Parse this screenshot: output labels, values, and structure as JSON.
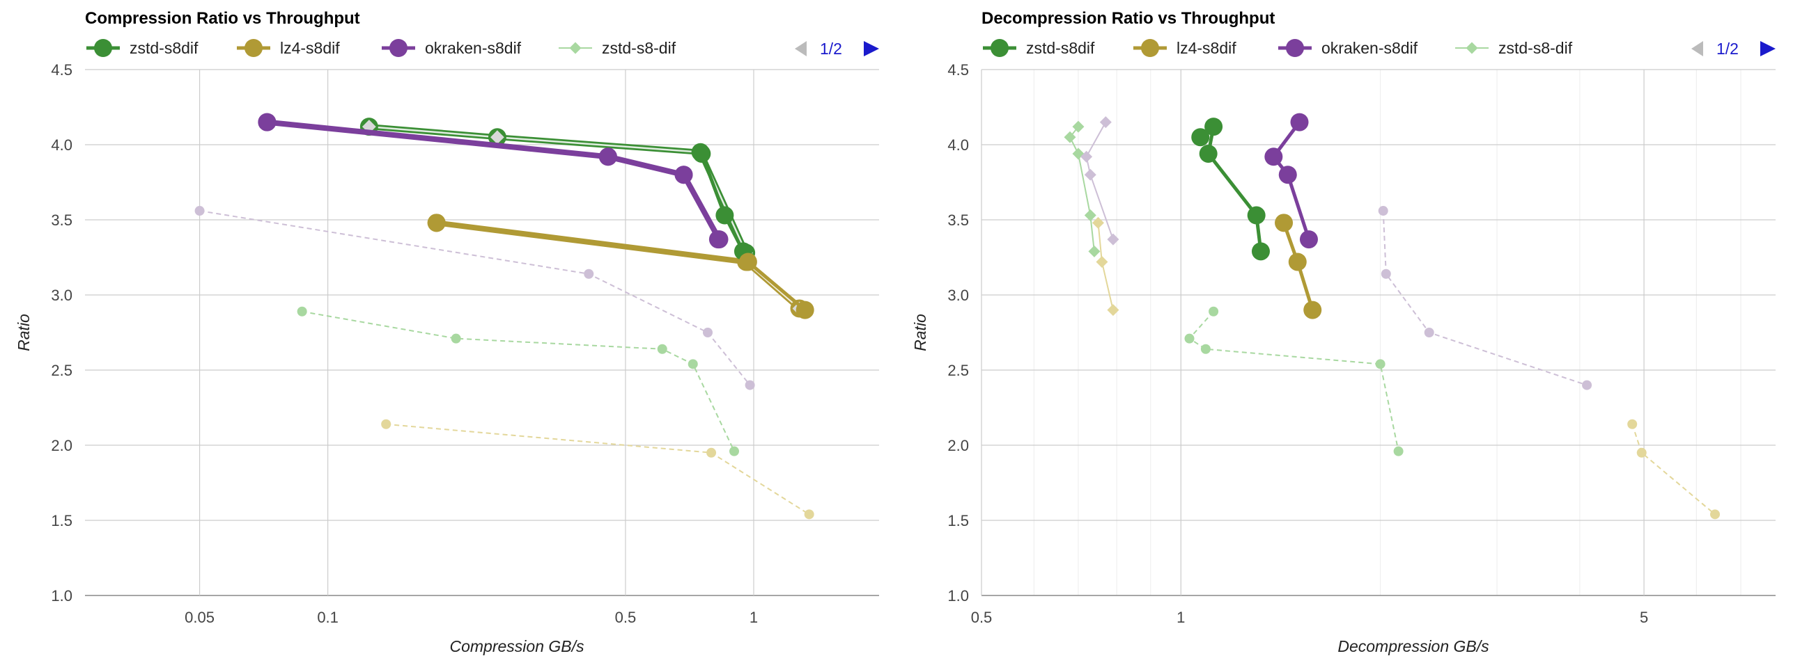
{
  "colors": {
    "zstd_main": "#3b8f35",
    "lz4_main": "#b09a35",
    "okraken_main": "#7b3f9c",
    "zstd_s8_dif": "#a8d8a0",
    "zstd_faded": "#a8d8a0",
    "lz4_faded": "#e3d79a",
    "okraken_faded": "#cdbfd6",
    "grid": "#cccccc",
    "pager_active": "#1a1acc",
    "pager_inactive": "#bbbbbb"
  },
  "chart_data": [
    {
      "type": "scatter",
      "title": "Compression Ratio vs Throughput",
      "xlabel": "Compression GB/s",
      "ylabel": "Ratio",
      "xscale": "log",
      "xlim": [
        0.0269,
        1.97
      ],
      "ylim": [
        1.0,
        4.5
      ],
      "xticks": [
        {
          "v": 0.05,
          "label": "0.05"
        },
        {
          "v": 0.1,
          "label": "0.1"
        },
        {
          "v": 0.5,
          "label": "0.5"
        },
        {
          "v": 1,
          "label": "1"
        }
      ],
      "yticks": [
        "1.0",
        "1.5",
        "2.0",
        "2.5",
        "3.0",
        "3.5",
        "4.0",
        "4.5"
      ],
      "minor_grid": false,
      "legend": {
        "position": "top",
        "entries": [
          "zstd-s8dif",
          "lz4-s8dif",
          "okraken-s8dif",
          "zstd-s8-dif"
        ],
        "pager": "1/2"
      },
      "series": [
        {
          "name": "zstd-s8dif",
          "role": "main-circle",
          "color": "zstd_main",
          "points": [
            [
              0.755,
              3.94
            ],
            [
              0.855,
              3.53
            ],
            [
              0.945,
              3.29
            ]
          ]
        },
        {
          "name": "zstd-s8dif",
          "role": "main-diamond-line",
          "color": "zstd_main",
          "points": [
            [
              0.125,
              4.12
            ],
            [
              0.25,
              4.05
            ],
            [
              0.75,
              3.95
            ],
            [
              0.96,
              3.28
            ]
          ]
        },
        {
          "name": "lz4-s8dif",
          "role": "main-circle",
          "color": "lz4_main",
          "points": [
            [
              0.18,
              3.48
            ],
            [
              0.97,
              3.22
            ],
            [
              1.32,
              2.9
            ]
          ]
        },
        {
          "name": "lz4-s8dif",
          "role": "main-diamond-line",
          "color": "lz4_main",
          "points": [
            [
              0.18,
              3.48
            ],
            [
              0.96,
              3.22
            ],
            [
              1.28,
              2.91
            ]
          ]
        },
        {
          "name": "okraken-s8dif",
          "role": "main-circle",
          "color": "okraken_main",
          "points": [
            [
              0.072,
              4.15
            ],
            [
              0.455,
              3.92
            ],
            [
              0.685,
              3.8
            ],
            [
              0.825,
              3.37
            ]
          ]
        },
        {
          "name": "okraken-s8dif",
          "role": "main-diamond-line",
          "color": "okraken_main",
          "points": [
            [
              0.072,
              4.15
            ],
            [
              0.455,
              3.92
            ],
            [
              0.685,
              3.8
            ],
            [
              0.83,
              3.37
            ]
          ]
        },
        {
          "name": "zstd-s8-dif",
          "role": "faded-dashed",
          "color": "zstd_faded",
          "points": [
            [
              0.087,
              2.89
            ],
            [
              0.2,
              2.71
            ],
            [
              0.61,
              2.64
            ],
            [
              0.72,
              2.54
            ],
            [
              0.9,
              1.96
            ]
          ]
        },
        {
          "name": "",
          "role": "faded-dashed",
          "color": "lz4_faded",
          "points": [
            [
              0.137,
              2.14
            ],
            [
              0.795,
              1.95
            ],
            [
              1.35,
              1.54
            ]
          ]
        },
        {
          "name": "",
          "role": "faded-dashed",
          "color": "okraken_faded",
          "points": [
            [
              0.05,
              3.56
            ],
            [
              0.41,
              3.14
            ],
            [
              0.78,
              2.75
            ],
            [
              0.98,
              2.4
            ]
          ]
        }
      ]
    },
    {
      "type": "scatter",
      "title": "Decompression Ratio vs Throughput",
      "xlabel": "Decompression GB/s",
      "ylabel": "Ratio",
      "xscale": "log",
      "xlim": [
        0.5,
        7.9
      ],
      "ylim": [
        1.0,
        4.5
      ],
      "xticks": [
        {
          "v": 0.5,
          "label": "0.5"
        },
        {
          "v": 1,
          "label": "1"
        },
        {
          "v": 5,
          "label": "5"
        }
      ],
      "yticks": [
        "1.0",
        "1.5",
        "2.0",
        "2.5",
        "3.0",
        "3.5",
        "4.0",
        "4.5"
      ],
      "minor_grid": true,
      "legend": {
        "position": "top",
        "entries": [
          "zstd-s8dif",
          "lz4-s8dif",
          "okraken-s8dif",
          "zstd-s8-dif"
        ],
        "pager": "1/2"
      },
      "series": [
        {
          "name": "zstd-s8dif",
          "role": "main-circle",
          "color": "zstd_main",
          "points": [
            [
              1.07,
              4.05
            ],
            [
              1.12,
              4.12
            ],
            [
              1.1,
              3.94
            ],
            [
              1.3,
              3.53
            ],
            [
              1.32,
              3.29
            ]
          ]
        },
        {
          "name": "lz4-s8dif",
          "role": "main-circle",
          "color": "lz4_main",
          "points": [
            [
              1.43,
              3.48
            ],
            [
              1.5,
              3.22
            ],
            [
              1.58,
              2.9
            ]
          ]
        },
        {
          "name": "okraken-s8dif",
          "role": "main-circle",
          "color": "okraken_main",
          "points": [
            [
              1.51,
              4.15
            ],
            [
              1.38,
              3.92
            ],
            [
              1.45,
              3.8
            ],
            [
              1.56,
              3.37
            ]
          ]
        },
        {
          "name": "zstd-s8-dif",
          "role": "faded-diamond-line",
          "color": "zstd_s8_dif",
          "points": [
            [
              0.7,
              4.12
            ],
            [
              0.68,
              4.05
            ],
            [
              0.7,
              3.94
            ],
            [
              0.73,
              3.53
            ],
            [
              0.74,
              3.29
            ]
          ]
        },
        {
          "name": "",
          "role": "faded-diamond-line",
          "color": "lz4_faded",
          "points": [
            [
              0.75,
              3.48
            ],
            [
              0.76,
              3.22
            ],
            [
              0.79,
              2.9
            ]
          ]
        },
        {
          "name": "",
          "role": "faded-diamond-line",
          "color": "okraken_faded",
          "points": [
            [
              0.77,
              4.15
            ],
            [
              0.72,
              3.92
            ],
            [
              0.73,
              3.8
            ],
            [
              0.79,
              3.37
            ]
          ]
        },
        {
          "name": "",
          "role": "faded-dashed",
          "color": "zstd_faded",
          "points": [
            [
              1.12,
              2.89
            ],
            [
              1.03,
              2.71
            ],
            [
              1.09,
              2.64
            ],
            [
              2.0,
              2.54
            ],
            [
              2.13,
              1.96
            ]
          ]
        },
        {
          "name": "",
          "role": "faded-dashed",
          "color": "lz4_faded",
          "points": [
            [
              4.8,
              2.14
            ],
            [
              4.96,
              1.95
            ],
            [
              6.4,
              1.54
            ]
          ]
        },
        {
          "name": "",
          "role": "faded-dashed",
          "color": "okraken_faded",
          "points": [
            [
              2.02,
              3.56
            ],
            [
              2.04,
              3.14
            ],
            [
              2.37,
              2.75
            ],
            [
              4.1,
              2.4
            ]
          ]
        }
      ]
    }
  ]
}
